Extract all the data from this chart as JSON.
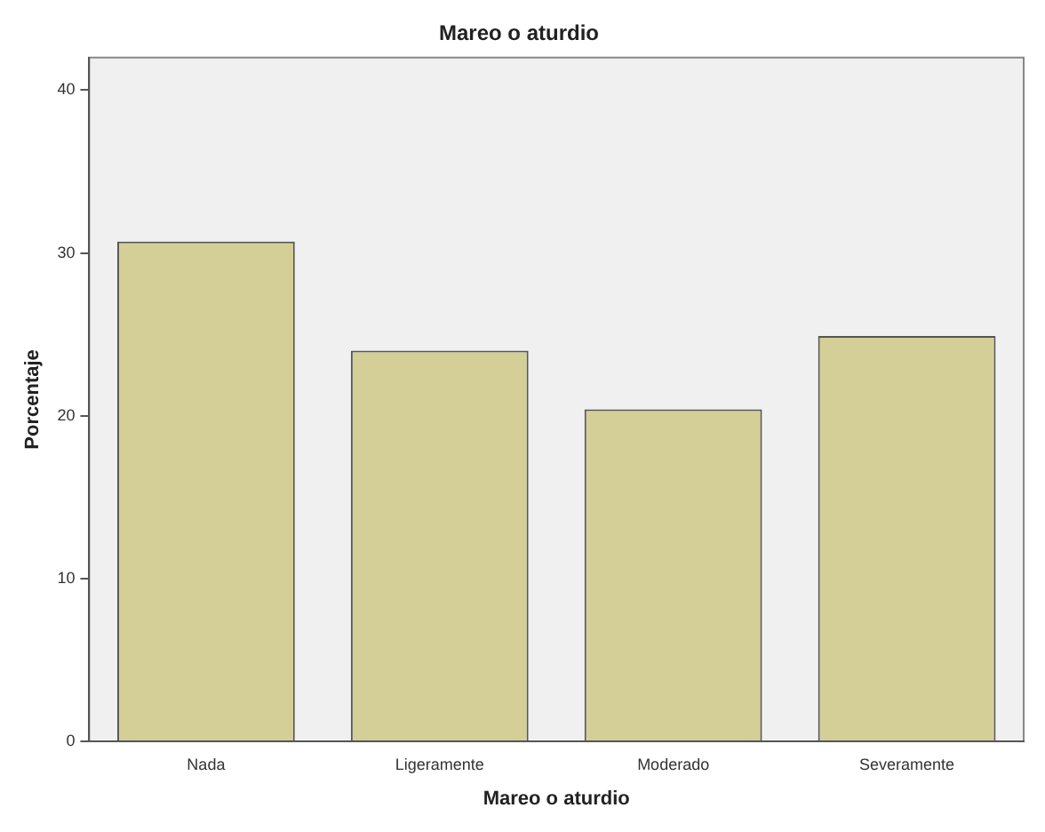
{
  "chart_data": {
    "type": "bar",
    "title": "Mareo o aturdio",
    "xlabel": "Mareo o aturdio",
    "ylabel": "Porcentaje",
    "categories": [
      "Nada",
      "Ligeramente",
      "Moderado",
      "Severamente"
    ],
    "values": [
      30.7,
      24.0,
      20.4,
      24.9
    ],
    "color": "#d4cf96",
    "ylim": [
      0,
      42
    ],
    "yticks": [
      0,
      10,
      20,
      30,
      40
    ],
    "grid": false,
    "legend": false
  }
}
